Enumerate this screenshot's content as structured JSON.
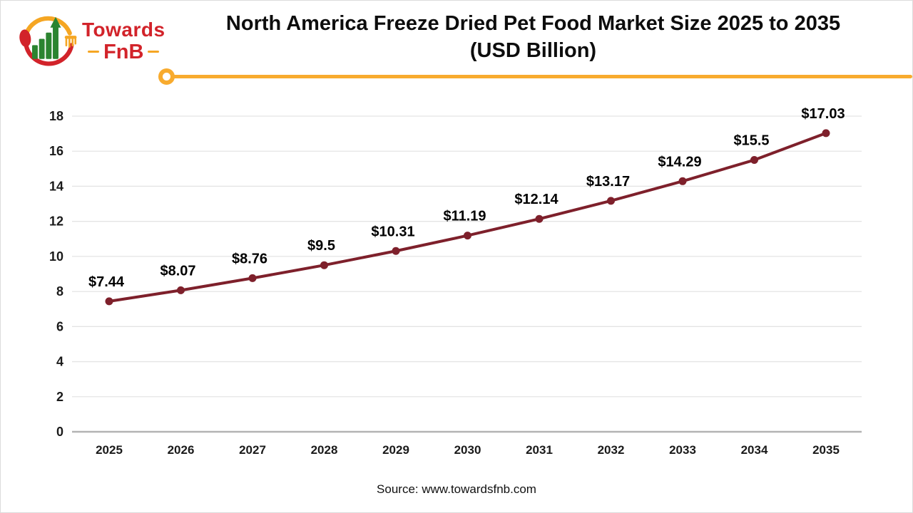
{
  "logo": {
    "brand_top": "Towards",
    "brand_bottom": "FnB"
  },
  "header": {
    "title_line1": "North America Freeze Dried Pet Food Market Size 2025 to 2035",
    "title_line2": "(USD Billion)"
  },
  "footer": {
    "source": "Source: www.towardsfnb.com"
  },
  "colors": {
    "accent_yellow": "#f8ab2e",
    "logo_red": "#d2232a",
    "logo_green": "#2b8430",
    "title_black": "#0d0d0d"
  },
  "chart_data": {
    "type": "line",
    "title": "North America Freeze Dried Pet Food Market Size 2025 to 2035 (USD Billion)",
    "categories": [
      "2025",
      "2026",
      "2027",
      "2028",
      "2029",
      "2030",
      "2031",
      "2032",
      "2033",
      "2034",
      "2035"
    ],
    "values": [
      7.44,
      8.07,
      8.76,
      9.5,
      10.31,
      11.19,
      12.14,
      13.17,
      14.29,
      15.5,
      17.03
    ],
    "data_labels": [
      "$7.44",
      "$8.07",
      "$8.76",
      "$9.5",
      "$10.31",
      "$11.19",
      "$12.14",
      "$13.17",
      "$14.29",
      "$15.5",
      "$17.03"
    ],
    "xlabel": "",
    "ylabel": "",
    "ylim": [
      0,
      18
    ],
    "ytick_step": 2,
    "grid": true,
    "legend": "none",
    "line_color": "#7e202b",
    "grid_color": "#e4e4e4",
    "axis_color": "#b3b3b3"
  }
}
